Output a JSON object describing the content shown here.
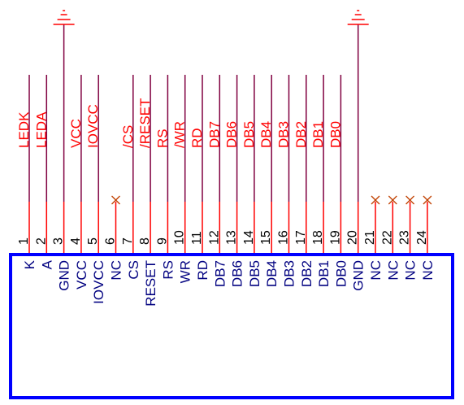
{
  "part": {
    "pins": [
      {
        "num": "1",
        "name": "K",
        "net": "LEDK"
      },
      {
        "num": "2",
        "name": "A",
        "net": "LEDA"
      },
      {
        "num": "3",
        "name": "GND",
        "net": ""
      },
      {
        "num": "4",
        "name": "VCC",
        "net": "VCC"
      },
      {
        "num": "5",
        "name": "IOVCC",
        "net": "IOVCC"
      },
      {
        "num": "6",
        "name": "NC",
        "net": ""
      },
      {
        "num": "7",
        "name": "CS",
        "net": "/CS"
      },
      {
        "num": "8",
        "name": "RESET",
        "net": "/RESET"
      },
      {
        "num": "9",
        "name": "RS",
        "net": "RS"
      },
      {
        "num": "10",
        "name": "WR",
        "net": "/WR"
      },
      {
        "num": "11",
        "name": "RD",
        "net": "RD"
      },
      {
        "num": "12",
        "name": "DB7",
        "net": "DB7"
      },
      {
        "num": "13",
        "name": "DB6",
        "net": "DB6"
      },
      {
        "num": "14",
        "name": "DB5",
        "net": "DB5"
      },
      {
        "num": "15",
        "name": "DB4",
        "net": "DB4"
      },
      {
        "num": "16",
        "name": "DB3",
        "net": "DB3"
      },
      {
        "num": "17",
        "name": "DB2",
        "net": "DB2"
      },
      {
        "num": "18",
        "name": "DB1",
        "net": "DB1"
      },
      {
        "num": "19",
        "name": "DB0",
        "net": "DB0"
      },
      {
        "num": "20",
        "name": "GND",
        "net": ""
      },
      {
        "num": "21",
        "name": "NC",
        "net": ""
      },
      {
        "num": "22",
        "name": "NC",
        "net": ""
      },
      {
        "num": "23",
        "name": "NC",
        "net": ""
      },
      {
        "num": "24",
        "name": "NC",
        "net": ""
      }
    ],
    "gnd_pins": [
      "3",
      "20"
    ],
    "nc_pins": [
      "6",
      "21",
      "22",
      "23",
      "24"
    ]
  },
  "colors": {
    "pin_line": "#ff0000",
    "net_wire": "#800040",
    "net_label": "#ff0000",
    "pin_text": "#000000",
    "pin_name": "#000080",
    "body_outline": "#0000ff",
    "nc_mark": "#c04000",
    "ground": "#ff0000"
  }
}
